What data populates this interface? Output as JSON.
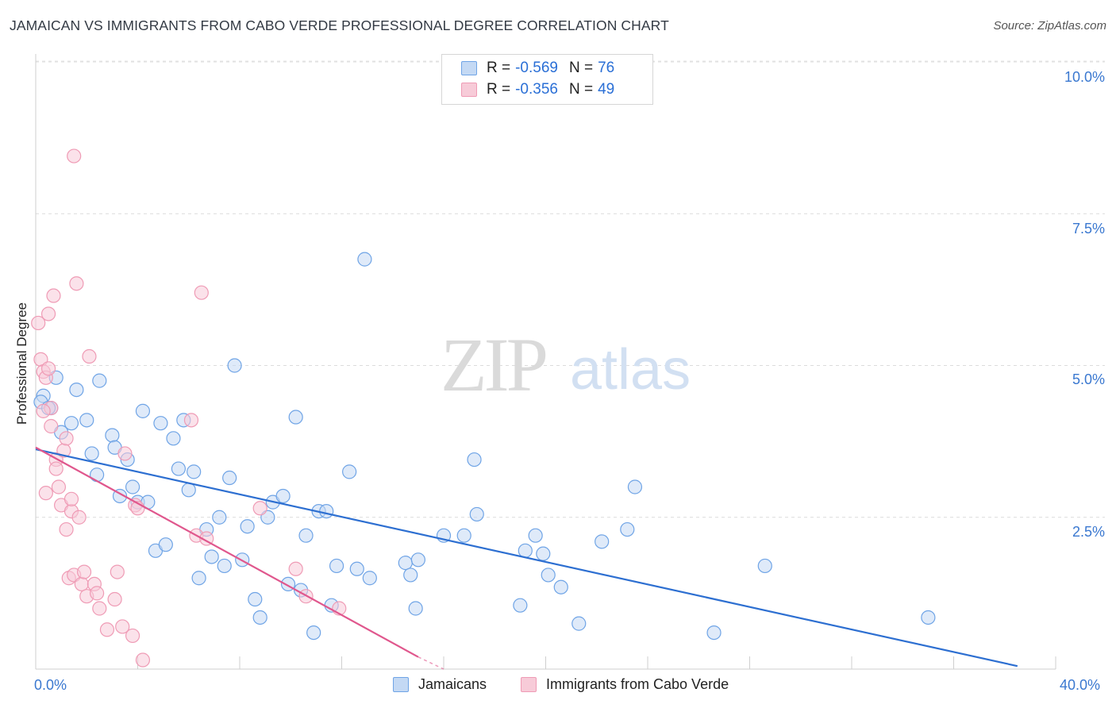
{
  "chart_data": {
    "type": "scatter",
    "title": "JAMAICAN VS IMMIGRANTS FROM CABO VERDE PROFESSIONAL DEGREE CORRELATION CHART",
    "source": "Source: ZipAtlas.com",
    "ylabel": "Professional Degree",
    "watermark": {
      "zip": "ZIP",
      "atlas": "atlas"
    },
    "xlim": [
      0,
      40
    ],
    "ylim": [
      0,
      10
    ],
    "x_tick_labels": [
      {
        "value": 0,
        "label": "0.0%"
      },
      {
        "value": 40,
        "label": "40.0%"
      }
    ],
    "y_tick_labels": [
      {
        "value": 10,
        "label": "10.0%"
      },
      {
        "value": 7.5,
        "label": "7.5%"
      },
      {
        "value": 5,
        "label": "5.0%"
      },
      {
        "value": 2.5,
        "label": "2.5%"
      }
    ],
    "legend": [
      {
        "r_label": "R =",
        "r_value": "-0.569",
        "n_label": "N =",
        "n_value": "76"
      },
      {
        "r_label": "R =",
        "r_value": "-0.356",
        "n_label": "N =",
        "n_value": "49"
      }
    ],
    "series": [
      {
        "name": "Jamaicans",
        "color": "#6fa4e6",
        "fill": "#c4d9f4",
        "line_color": "#2d6fd1",
        "trend": {
          "x": [
            0,
            38.5
          ],
          "y": [
            3.62,
            0.05
          ]
        },
        "points": [
          [
            0.3,
            4.5
          ],
          [
            0.6,
            4.3
          ],
          [
            0.8,
            4.8
          ],
          [
            1.0,
            3.9
          ],
          [
            1.4,
            4.05
          ],
          [
            1.6,
            4.6
          ],
          [
            2.0,
            4.1
          ],
          [
            2.2,
            3.55
          ],
          [
            2.4,
            3.2
          ],
          [
            2.5,
            4.75
          ],
          [
            3.0,
            3.85
          ],
          [
            3.1,
            3.65
          ],
          [
            3.3,
            2.85
          ],
          [
            3.6,
            3.45
          ],
          [
            3.8,
            3.0
          ],
          [
            4.0,
            2.75
          ],
          [
            4.2,
            4.25
          ],
          [
            4.4,
            2.75
          ],
          [
            4.7,
            1.95
          ],
          [
            4.9,
            4.05
          ],
          [
            5.1,
            2.05
          ],
          [
            5.4,
            3.8
          ],
          [
            5.6,
            3.3
          ],
          [
            5.8,
            4.1
          ],
          [
            6.0,
            2.95
          ],
          [
            6.2,
            3.25
          ],
          [
            6.4,
            1.5
          ],
          [
            6.7,
            2.3
          ],
          [
            6.9,
            1.85
          ],
          [
            7.2,
            2.5
          ],
          [
            7.4,
            1.7
          ],
          [
            7.6,
            3.15
          ],
          [
            7.8,
            5.0
          ],
          [
            8.1,
            1.8
          ],
          [
            8.3,
            2.35
          ],
          [
            8.6,
            1.15
          ],
          [
            8.8,
            0.85
          ],
          [
            9.1,
            2.5
          ],
          [
            9.3,
            2.75
          ],
          [
            9.7,
            2.85
          ],
          [
            9.9,
            1.4
          ],
          [
            10.2,
            4.15
          ],
          [
            10.4,
            1.3
          ],
          [
            10.6,
            2.2
          ],
          [
            10.9,
            0.6
          ],
          [
            11.1,
            2.6
          ],
          [
            11.4,
            2.6
          ],
          [
            11.6,
            1.05
          ],
          [
            11.8,
            1.7
          ],
          [
            12.3,
            3.25
          ],
          [
            12.6,
            1.65
          ],
          [
            12.9,
            6.75
          ],
          [
            13.1,
            1.5
          ],
          [
            14.5,
            1.75
          ],
          [
            14.7,
            1.55
          ],
          [
            15.0,
            1.8
          ],
          [
            14.9,
            1.0
          ],
          [
            16.0,
            2.2
          ],
          [
            16.8,
            2.2
          ],
          [
            17.2,
            3.45
          ],
          [
            17.3,
            2.55
          ],
          [
            19.0,
            1.05
          ],
          [
            19.2,
            1.95
          ],
          [
            19.6,
            2.2
          ],
          [
            19.9,
            1.9
          ],
          [
            20.1,
            1.55
          ],
          [
            20.6,
            1.35
          ],
          [
            21.3,
            0.75
          ],
          [
            22.2,
            2.1
          ],
          [
            23.2,
            2.3
          ],
          [
            23.5,
            3.0
          ],
          [
            26.6,
            0.6
          ],
          [
            28.6,
            1.7
          ],
          [
            35.0,
            0.85
          ],
          [
            0.2,
            4.4
          ],
          [
            0.5,
            4.3
          ]
        ]
      },
      {
        "name": "Immigrants from Cabo Verde",
        "color": "#ef9bb5",
        "fill": "#f7cbd8",
        "line_color": "#e0578d",
        "trend": {
          "x": [
            0,
            15
          ],
          "y": [
            3.65,
            0.2
          ]
        },
        "trend_dash": {
          "x": [
            15,
            16
          ],
          "y": [
            0.2,
            0.0
          ]
        },
        "points": [
          [
            0.1,
            5.7
          ],
          [
            0.2,
            5.1
          ],
          [
            0.3,
            4.9
          ],
          [
            0.4,
            4.8
          ],
          [
            0.5,
            4.95
          ],
          [
            0.5,
            5.85
          ],
          [
            0.6,
            4.3
          ],
          [
            0.7,
            6.15
          ],
          [
            0.8,
            3.45
          ],
          [
            0.8,
            3.3
          ],
          [
            0.9,
            3.0
          ],
          [
            1.0,
            2.7
          ],
          [
            1.1,
            3.6
          ],
          [
            1.2,
            3.8
          ],
          [
            1.2,
            2.3
          ],
          [
            1.3,
            1.5
          ],
          [
            1.4,
            2.6
          ],
          [
            1.4,
            2.8
          ],
          [
            1.5,
            1.55
          ],
          [
            1.6,
            6.35
          ],
          [
            1.7,
            2.5
          ],
          [
            1.8,
            1.4
          ],
          [
            1.9,
            1.6
          ],
          [
            2.0,
            1.2
          ],
          [
            2.1,
            5.15
          ],
          [
            2.3,
            1.4
          ],
          [
            2.4,
            1.25
          ],
          [
            2.5,
            1.0
          ],
          [
            2.8,
            0.65
          ],
          [
            3.1,
            1.15
          ],
          [
            3.2,
            1.6
          ],
          [
            3.4,
            0.7
          ],
          [
            3.5,
            3.55
          ],
          [
            3.8,
            0.55
          ],
          [
            3.9,
            2.7
          ],
          [
            4.0,
            2.65
          ],
          [
            4.2,
            0.15
          ],
          [
            6.1,
            4.1
          ],
          [
            6.3,
            2.2
          ],
          [
            6.5,
            6.2
          ],
          [
            6.7,
            2.15
          ],
          [
            8.8,
            2.65
          ],
          [
            10.2,
            1.65
          ],
          [
            10.6,
            1.2
          ],
          [
            11.9,
            1.0
          ],
          [
            0.3,
            4.25
          ],
          [
            0.6,
            4.0
          ],
          [
            0.4,
            2.9
          ],
          [
            1.5,
            8.45
          ]
        ]
      }
    ]
  }
}
